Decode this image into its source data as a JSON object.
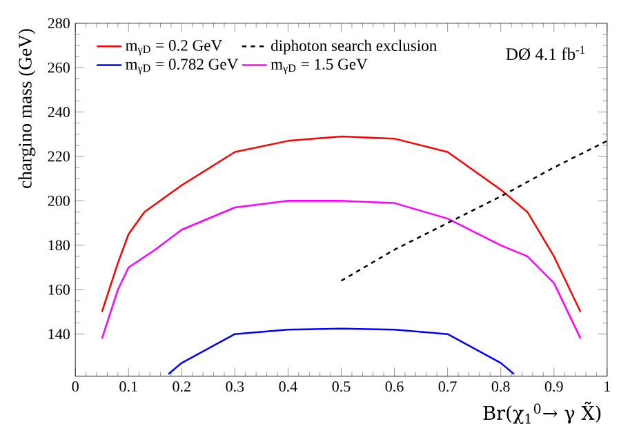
{
  "chart_data": {
    "type": "line",
    "xlabel": "Br(χ$_{1}$$^{0}$→ γ X̃)",
    "ylabel": "chargino mass (GeV)",
    "annotations": [
      "DØ 4.1 fb$^{-1}$"
    ],
    "xlim": [
      0,
      1
    ],
    "ylim": [
      121,
      280
    ],
    "xticks": [
      0,
      0.1,
      0.2,
      0.3,
      0.4,
      0.5,
      0.6,
      0.7,
      0.8,
      0.9,
      1
    ],
    "yticks": [
      140,
      160,
      180,
      200,
      220,
      240,
      260,
      280
    ],
    "legend": "top left",
    "marker": "none",
    "grid": false,
    "series": [
      {
        "name": "m$_{γD}$ = 0.2 GeV",
        "color": "#ff0000",
        "line_style": "solid",
        "x": [
          0.05,
          0.08,
          0.1,
          0.13,
          0.2,
          0.3,
          0.4,
          0.5,
          0.6,
          0.7,
          0.8,
          0.85,
          0.9,
          0.95
        ],
        "values": [
          150,
          172,
          185,
          195,
          207,
          222,
          227,
          229,
          228,
          222,
          205,
          195,
          175,
          150
        ]
      },
      {
        "name": "m$_{γD}$ = 0.782 GeV",
        "color": "#0000ff",
        "line_style": "solid",
        "x": [
          0.175,
          0.2,
          0.3,
          0.4,
          0.5,
          0.6,
          0.7,
          0.8,
          0.825
        ],
        "values": [
          122,
          127,
          140,
          142,
          142.5,
          142,
          140,
          127,
          122
        ]
      },
      {
        "name": "m$_{γD}$ = 1.5 GeV",
        "color": "#ff00ff",
        "line_style": "solid",
        "x": [
          0.05,
          0.08,
          0.1,
          0.15,
          0.2,
          0.3,
          0.4,
          0.5,
          0.6,
          0.7,
          0.8,
          0.85,
          0.9,
          0.95
        ],
        "values": [
          138,
          160,
          170,
          178,
          187,
          197,
          200,
          200,
          199,
          192,
          180,
          175,
          163,
          138
        ]
      },
      {
        "name": "diphoton search exclusion",
        "color": "#000000",
        "line_style": "dashed",
        "x": [
          0.5,
          0.6,
          0.7,
          0.8,
          0.9,
          1.0
        ],
        "values": [
          164,
          178,
          190,
          202,
          215,
          227
        ]
      }
    ]
  }
}
